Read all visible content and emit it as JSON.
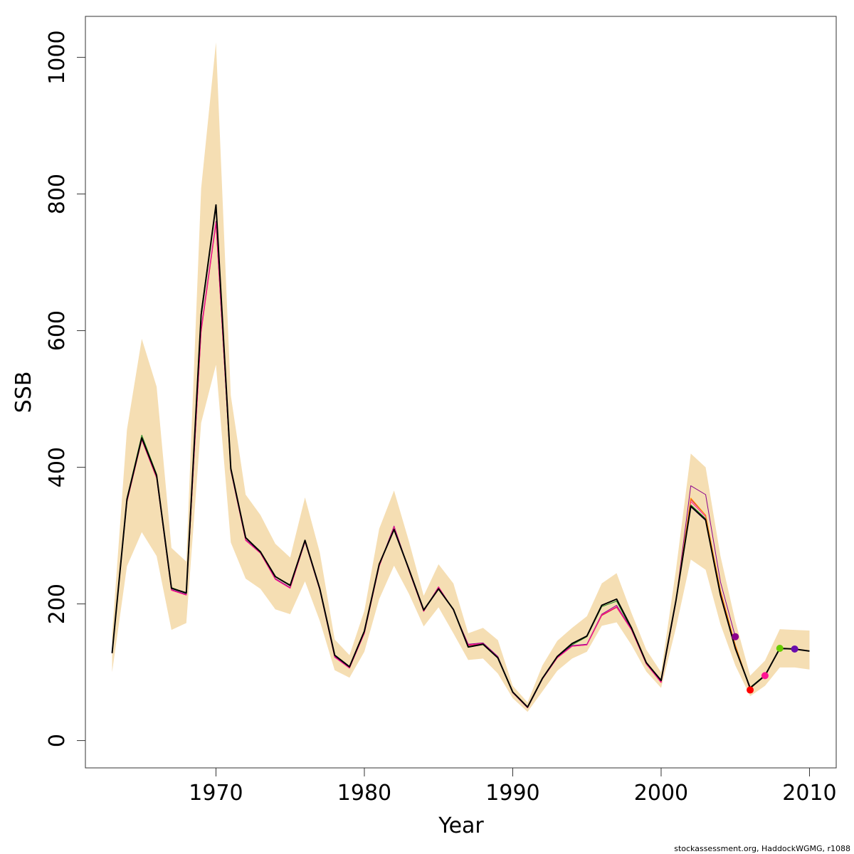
{
  "chart_data": {
    "type": "line",
    "xlabel": "Year",
    "ylabel": "SSB",
    "xlim": [
      1961.2,
      2011.8
    ],
    "ylim": [
      -40,
      1060
    ],
    "x_ticks": [
      1970,
      1980,
      1990,
      2000,
      2010
    ],
    "y_ticks": [
      0,
      200,
      400,
      600,
      800,
      1000
    ],
    "grid": false,
    "legend": "none",
    "band": {
      "color": "#F5DEB3",
      "x": [
        1963,
        1964,
        1965,
        1966,
        1967,
        1968,
        1969,
        1970,
        1971,
        1972,
        1973,
        1974,
        1975,
        1976,
        1977,
        1978,
        1979,
        1980,
        1981,
        1982,
        1983,
        1984,
        1985,
        1986,
        1987,
        1988,
        1989,
        1990,
        1991,
        1992,
        1993,
        1994,
        1995,
        1996,
        1997,
        1998,
        1999,
        2000,
        2001,
        2002,
        2003,
        2004,
        2005,
        2006,
        2007,
        2008,
        2009,
        2010
      ],
      "lower": [
        100,
        255,
        305,
        270,
        162,
        172,
        465,
        550,
        290,
        237,
        222,
        192,
        185,
        233,
        175,
        103,
        92,
        130,
        207,
        256,
        215,
        167,
        195,
        157,
        118,
        120,
        98,
        62,
        42,
        72,
        102,
        120,
        130,
        168,
        173,
        140,
        101,
        77,
        165,
        265,
        250,
        170,
        110,
        65,
        80,
        107,
        107,
        104
      ],
      "upper": [
        155,
        455,
        588,
        518,
        282,
        262,
        808,
        1022,
        505,
        360,
        330,
        288,
        268,
        356,
        275,
        148,
        125,
        190,
        310,
        366,
        292,
        212,
        258,
        230,
        157,
        165,
        147,
        80,
        56,
        110,
        146,
        165,
        182,
        230,
        245,
        187,
        133,
        100,
        250,
        420,
        400,
        270,
        175,
        95,
        117,
        163,
        162,
        161
      ]
    },
    "series": [
      {
        "color": "#000000",
        "x": [
          1963,
          1964,
          1965,
          1966,
          1967,
          1968,
          1969,
          1970,
          1971,
          1972,
          1973,
          1974,
          1975,
          1976,
          1977,
          1978,
          1979,
          1980,
          1981,
          1982,
          1983,
          1984,
          1985,
          1986,
          1987,
          1988,
          1989,
          1990,
          1991,
          1992,
          1993,
          1994,
          1995,
          1996,
          1997,
          1998,
          1999,
          2000,
          2001,
          2002,
          2003,
          2004,
          2005,
          2006,
          2007,
          2008,
          2009,
          2010
        ],
        "y": [
          128,
          353,
          443,
          388,
          223,
          216,
          623,
          784,
          398,
          297,
          276,
          240,
          227,
          293,
          222,
          125,
          108,
          160,
          258,
          309,
          251,
          191,
          222,
          192,
          137,
          141,
          121,
          71,
          49,
          91,
          123,
          142,
          153,
          198,
          207,
          165,
          114,
          88,
          205,
          343,
          323,
          213,
          135,
          77,
          95,
          135,
          134,
          131
        ]
      },
      {
        "color": "#228B22",
        "x": [
          1963,
          1964,
          1965,
          1966,
          1967,
          1968,
          1969,
          1970,
          1971,
          1972,
          1973,
          1974,
          1975,
          1976,
          1977,
          1978,
          1979,
          1980,
          1981,
          1982,
          1983,
          1984,
          1985,
          1986,
          1987,
          1988,
          1989,
          1990,
          1991,
          1992,
          1993,
          1994,
          1995,
          1996,
          1997,
          1998,
          1999,
          2000,
          2001,
          2002,
          2003,
          2004,
          2005,
          2006,
          2007,
          2008
        ],
        "y": [
          128,
          355,
          447,
          390,
          224,
          216,
          628,
          783,
          400,
          297,
          277,
          240,
          228,
          293,
          222,
          125,
          108,
          160,
          258,
          310,
          251,
          191,
          223,
          192,
          137,
          141,
          121,
          71,
          49,
          91,
          123,
          140,
          152,
          196,
          204,
          163,
          114,
          88,
          206,
          345,
          325,
          214,
          137,
          78,
          96,
          135
        ]
      },
      {
        "color": "#DC143C",
        "x": [
          1963,
          1964,
          1965,
          1966,
          1967,
          1968,
          1969,
          1970,
          1971,
          1972,
          1973,
          1974,
          1975,
          1976,
          1977,
          1978,
          1979,
          1980,
          1981,
          1982,
          1983,
          1984,
          1985,
          1986,
          1987,
          1988,
          1989,
          1990,
          1991,
          1992,
          1993,
          1994,
          1995,
          1996,
          1997,
          1998,
          1999,
          2000,
          2001,
          2002,
          2003,
          2004,
          2005,
          2006
        ],
        "y": [
          128,
          349,
          440,
          384,
          220,
          213,
          598,
          756,
          395,
          293,
          274,
          236,
          223,
          291,
          220,
          122,
          106,
          157,
          255,
          313,
          249,
          189,
          225,
          191,
          139,
          142,
          122,
          70,
          48,
          90,
          121,
          138,
          140,
          183,
          195,
          162,
          112,
          85,
          203,
          353,
          330,
          217,
          140,
          74
        ]
      },
      {
        "color": "#8B008B",
        "x": [
          1963,
          1964,
          1965,
          1966,
          1967,
          1968,
          1969,
          1970,
          1971,
          1972,
          1973,
          1974,
          1975,
          1976,
          1977,
          1978,
          1979,
          1980,
          1981,
          1982,
          1983,
          1984,
          1985,
          1986,
          1987,
          1988,
          1989,
          1990,
          1991,
          1992,
          1993,
          1994,
          1995,
          1996,
          1997,
          1998,
          1999,
          2000,
          2001,
          2002,
          2003,
          2004,
          2005
        ],
        "y": [
          128,
          351,
          441,
          386,
          221,
          214,
          603,
          760,
          396,
          294,
          275,
          237,
          224,
          291,
          221,
          123,
          107,
          158,
          256,
          314,
          250,
          190,
          225,
          191,
          141,
          143,
          123,
          70,
          48,
          90,
          122,
          139,
          141,
          185,
          198,
          163,
          113,
          86,
          204,
          373,
          360,
          232,
          152
        ]
      },
      {
        "color": "#FF1493",
        "x": [
          1963,
          1964,
          1965,
          1966,
          1967,
          1968,
          1969,
          1970,
          1971,
          1972,
          1973,
          1974,
          1975,
          1976,
          1977,
          1978,
          1979,
          1980,
          1981,
          1982,
          1983,
          1984,
          1985,
          1986,
          1987,
          1988,
          1989,
          1990,
          1991,
          1992,
          1993,
          1994,
          1995,
          1996,
          1997,
          1998,
          1999,
          2000,
          2001,
          2002,
          2003,
          2004,
          2005,
          2006,
          2007
        ],
        "y": [
          128,
          350,
          440,
          385,
          220,
          213,
          600,
          758,
          395,
          293,
          274,
          236,
          223,
          291,
          220,
          122,
          106,
          157,
          255,
          313,
          249,
          189,
          225,
          191,
          140,
          142,
          122,
          70,
          48,
          90,
          121,
          138,
          140,
          184,
          196,
          162,
          112,
          85,
          203,
          350,
          328,
          216,
          139,
          76,
          95
        ]
      },
      {
        "color": "#FF8C00",
        "x": [
          2001,
          2002,
          2003,
          2004,
          2005,
          2006,
          2007
        ],
        "y": [
          205,
          355,
          330,
          220,
          140,
          76,
          95
        ]
      },
      {
        "color": "#6A0DAD",
        "x": [
          2001,
          2002,
          2003,
          2004,
          2005,
          2006,
          2007,
          2008,
          2009
        ],
        "y": [
          205,
          342,
          322,
          213,
          135,
          77,
          95,
          134,
          134
        ]
      }
    ],
    "endpoints": [
      {
        "x": 2005,
        "y": 152,
        "color": "#8B008B"
      },
      {
        "x": 2006,
        "y": 74,
        "color": "#FF0000"
      },
      {
        "x": 2007,
        "y": 95,
        "color": "#FF1493"
      },
      {
        "x": 2008,
        "y": 135,
        "color": "#66CC00"
      },
      {
        "x": 2009,
        "y": 134,
        "color": "#6A0DAD"
      }
    ]
  },
  "footer": "stockassessment.org, HaddockWGMG, r1088"
}
